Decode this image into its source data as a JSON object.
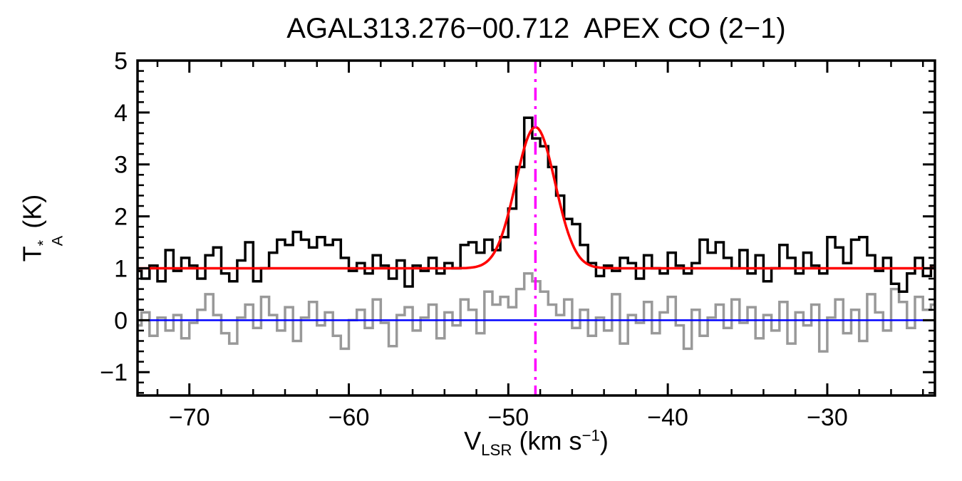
{
  "title": "AGAL313.276−00.712  APEX CO (2−1)",
  "ylabel": {
    "base": "T",
    "sup": "*",
    "sub": "A",
    "unit": " (K)"
  },
  "xlabel": {
    "base": "V",
    "sub": "LSR",
    "mid": " (km s",
    "sup": "−1",
    "end": ")"
  },
  "chart_data": {
    "type": "line",
    "title": "AGAL313.276−00.712  APEX CO (2−1)",
    "xlabel": "V_LSR (km s^-1)",
    "ylabel": "T_A^* (K)",
    "xlim": [
      -73.25,
      -23.25
    ],
    "ylim": [
      -1.45,
      5.0
    ],
    "x_ticks": [
      -70,
      -60,
      -50,
      -40,
      -30
    ],
    "y_ticks": [
      -1,
      0,
      1,
      2,
      3,
      4,
      5
    ],
    "x_minor_step": 2,
    "y_minor_step": 0.2,
    "grid": false,
    "legend": false,
    "x": [
      -73.25,
      -72.75,
      -72.25,
      -71.75,
      -71.25,
      -70.75,
      -70.25,
      -69.75,
      -69.25,
      -68.75,
      -68.25,
      -67.75,
      -67.25,
      -66.75,
      -66.25,
      -65.75,
      -65.25,
      -64.75,
      -64.25,
      -63.75,
      -63.25,
      -62.75,
      -62.25,
      -61.75,
      -61.25,
      -60.75,
      -60.25,
      -59.75,
      -59.25,
      -58.75,
      -58.25,
      -57.75,
      -57.25,
      -56.75,
      -56.25,
      -55.75,
      -55.25,
      -54.75,
      -54.25,
      -53.75,
      -53.25,
      -52.75,
      -52.25,
      -51.75,
      -51.25,
      -50.75,
      -50.25,
      -49.75,
      -49.25,
      -48.75,
      -48.25,
      -47.75,
      -47.25,
      -46.75,
      -46.25,
      -45.75,
      -45.25,
      -44.75,
      -44.25,
      -43.75,
      -43.25,
      -42.75,
      -42.25,
      -41.75,
      -41.25,
      -40.75,
      -40.25,
      -39.75,
      -39.25,
      -38.75,
      -38.25,
      -37.75,
      -37.25,
      -36.75,
      -36.25,
      -35.75,
      -35.25,
      -34.75,
      -34.25,
      -33.75,
      -33.25,
      -32.75,
      -32.25,
      -31.75,
      -31.25,
      -30.75,
      -30.25,
      -29.75,
      -29.25,
      -28.75,
      -28.25,
      -27.75,
      -27.25,
      -26.75,
      -26.25,
      -25.75,
      -25.25,
      -24.75,
      -24.25,
      -23.75,
      -23.25
    ],
    "series": [
      {
        "name": "co-spectrum",
        "style": "histogram",
        "color": "#000000",
        "values": [
          0.95,
          0.8,
          1.05,
          0.75,
          1.35,
          0.95,
          1.2,
          1.05,
          0.8,
          1.25,
          1.4,
          0.9,
          0.75,
          1.15,
          1.5,
          0.75,
          1.0,
          1.3,
          1.55,
          1.45,
          1.7,
          1.55,
          1.4,
          1.6,
          1.45,
          1.55,
          1.2,
          0.95,
          1.1,
          0.9,
          1.25,
          1.05,
          0.8,
          1.15,
          0.65,
          1.05,
          0.95,
          1.2,
          0.9,
          1.1,
          1.0,
          1.45,
          1.5,
          1.3,
          1.55,
          1.35,
          1.6,
          2.15,
          2.95,
          3.9,
          3.5,
          3.35,
          2.95,
          2.4,
          1.95,
          1.85,
          1.45,
          1.1,
          0.85,
          1.05,
          0.95,
          1.2,
          1.1,
          0.8,
          1.25,
          1.0,
          0.9,
          1.3,
          1.05,
          0.9,
          1.1,
          1.55,
          1.3,
          1.5,
          1.2,
          1.0,
          1.35,
          0.9,
          1.25,
          0.75,
          1.0,
          1.45,
          1.2,
          0.9,
          1.3,
          1.05,
          0.9,
          1.6,
          1.4,
          1.1,
          1.55,
          1.6,
          1.25,
          0.95,
          1.2,
          0.7,
          0.55,
          0.9,
          1.2,
          0.85,
          1.05
        ]
      },
      {
        "name": "residual-spectrum",
        "style": "histogram",
        "color": "#999999",
        "values": [
          -0.1,
          0.15,
          -0.3,
          0.05,
          -0.2,
          0.1,
          -0.35,
          -0.05,
          0.2,
          0.5,
          0.1,
          -0.25,
          -0.45,
          0.05,
          0.3,
          -0.15,
          0.45,
          0.1,
          -0.2,
          0.25,
          -0.4,
          0.05,
          0.35,
          -0.1,
          0.15,
          -0.3,
          -0.55,
          0.0,
          0.2,
          -0.15,
          0.4,
          -0.05,
          -0.5,
          0.1,
          0.25,
          -0.2,
          0.05,
          0.3,
          -0.35,
          0.15,
          -0.1,
          0.4,
          0.2,
          -0.25,
          0.55,
          0.3,
          0.45,
          0.25,
          0.6,
          0.9,
          0.75,
          0.55,
          0.3,
          0.1,
          0.4,
          -0.15,
          0.2,
          -0.3,
          0.05,
          -0.2,
          0.5,
          -0.45,
          0.1,
          -0.05,
          0.35,
          -0.25,
          0.15,
          0.45,
          -0.1,
          -0.55,
          0.2,
          -0.3,
          0.05,
          0.3,
          -0.15,
          0.4,
          -0.05,
          0.25,
          -0.35,
          0.1,
          -0.2,
          0.35,
          -0.45,
          0.15,
          -0.1,
          0.3,
          -0.6,
          0.05,
          0.4,
          -0.25,
          0.2,
          -0.4,
          0.5,
          0.15,
          -0.2,
          0.6,
          0.35,
          -0.15,
          0.45,
          0.2,
          0.3
        ]
      }
    ],
    "fit": {
      "name": "gaussian-fit",
      "color": "#ff0000",
      "baseline": 1.0,
      "amplitude": 2.72,
      "center": -48.3,
      "fwhm": 2.9
    },
    "baseline_line": {
      "name": "zero-line",
      "color": "#0000ff",
      "y": 0
    },
    "vline": {
      "name": "vlsr-marker",
      "color": "#ff00ff",
      "x": -48.3,
      "style": "dash-dot"
    }
  }
}
